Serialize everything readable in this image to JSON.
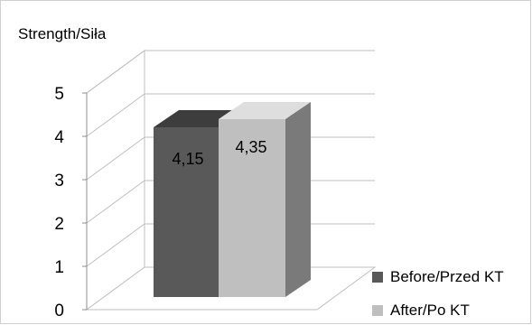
{
  "chart_data": {
    "type": "bar",
    "style": "3d-columns",
    "ylabel": "Strength/Siła",
    "ylim": [
      0,
      5
    ],
    "yticks": [
      "0",
      "1",
      "2",
      "3",
      "4",
      "5"
    ],
    "grid": true,
    "legend_position": "bottom-right",
    "series": [
      {
        "name": "Before/Przed KT",
        "value": 4.15,
        "label": "4,15",
        "color": "#595959"
      },
      {
        "name": "After/Po KT",
        "value": 4.35,
        "label": "4,35",
        "color": "#bfbfbf"
      }
    ]
  }
}
